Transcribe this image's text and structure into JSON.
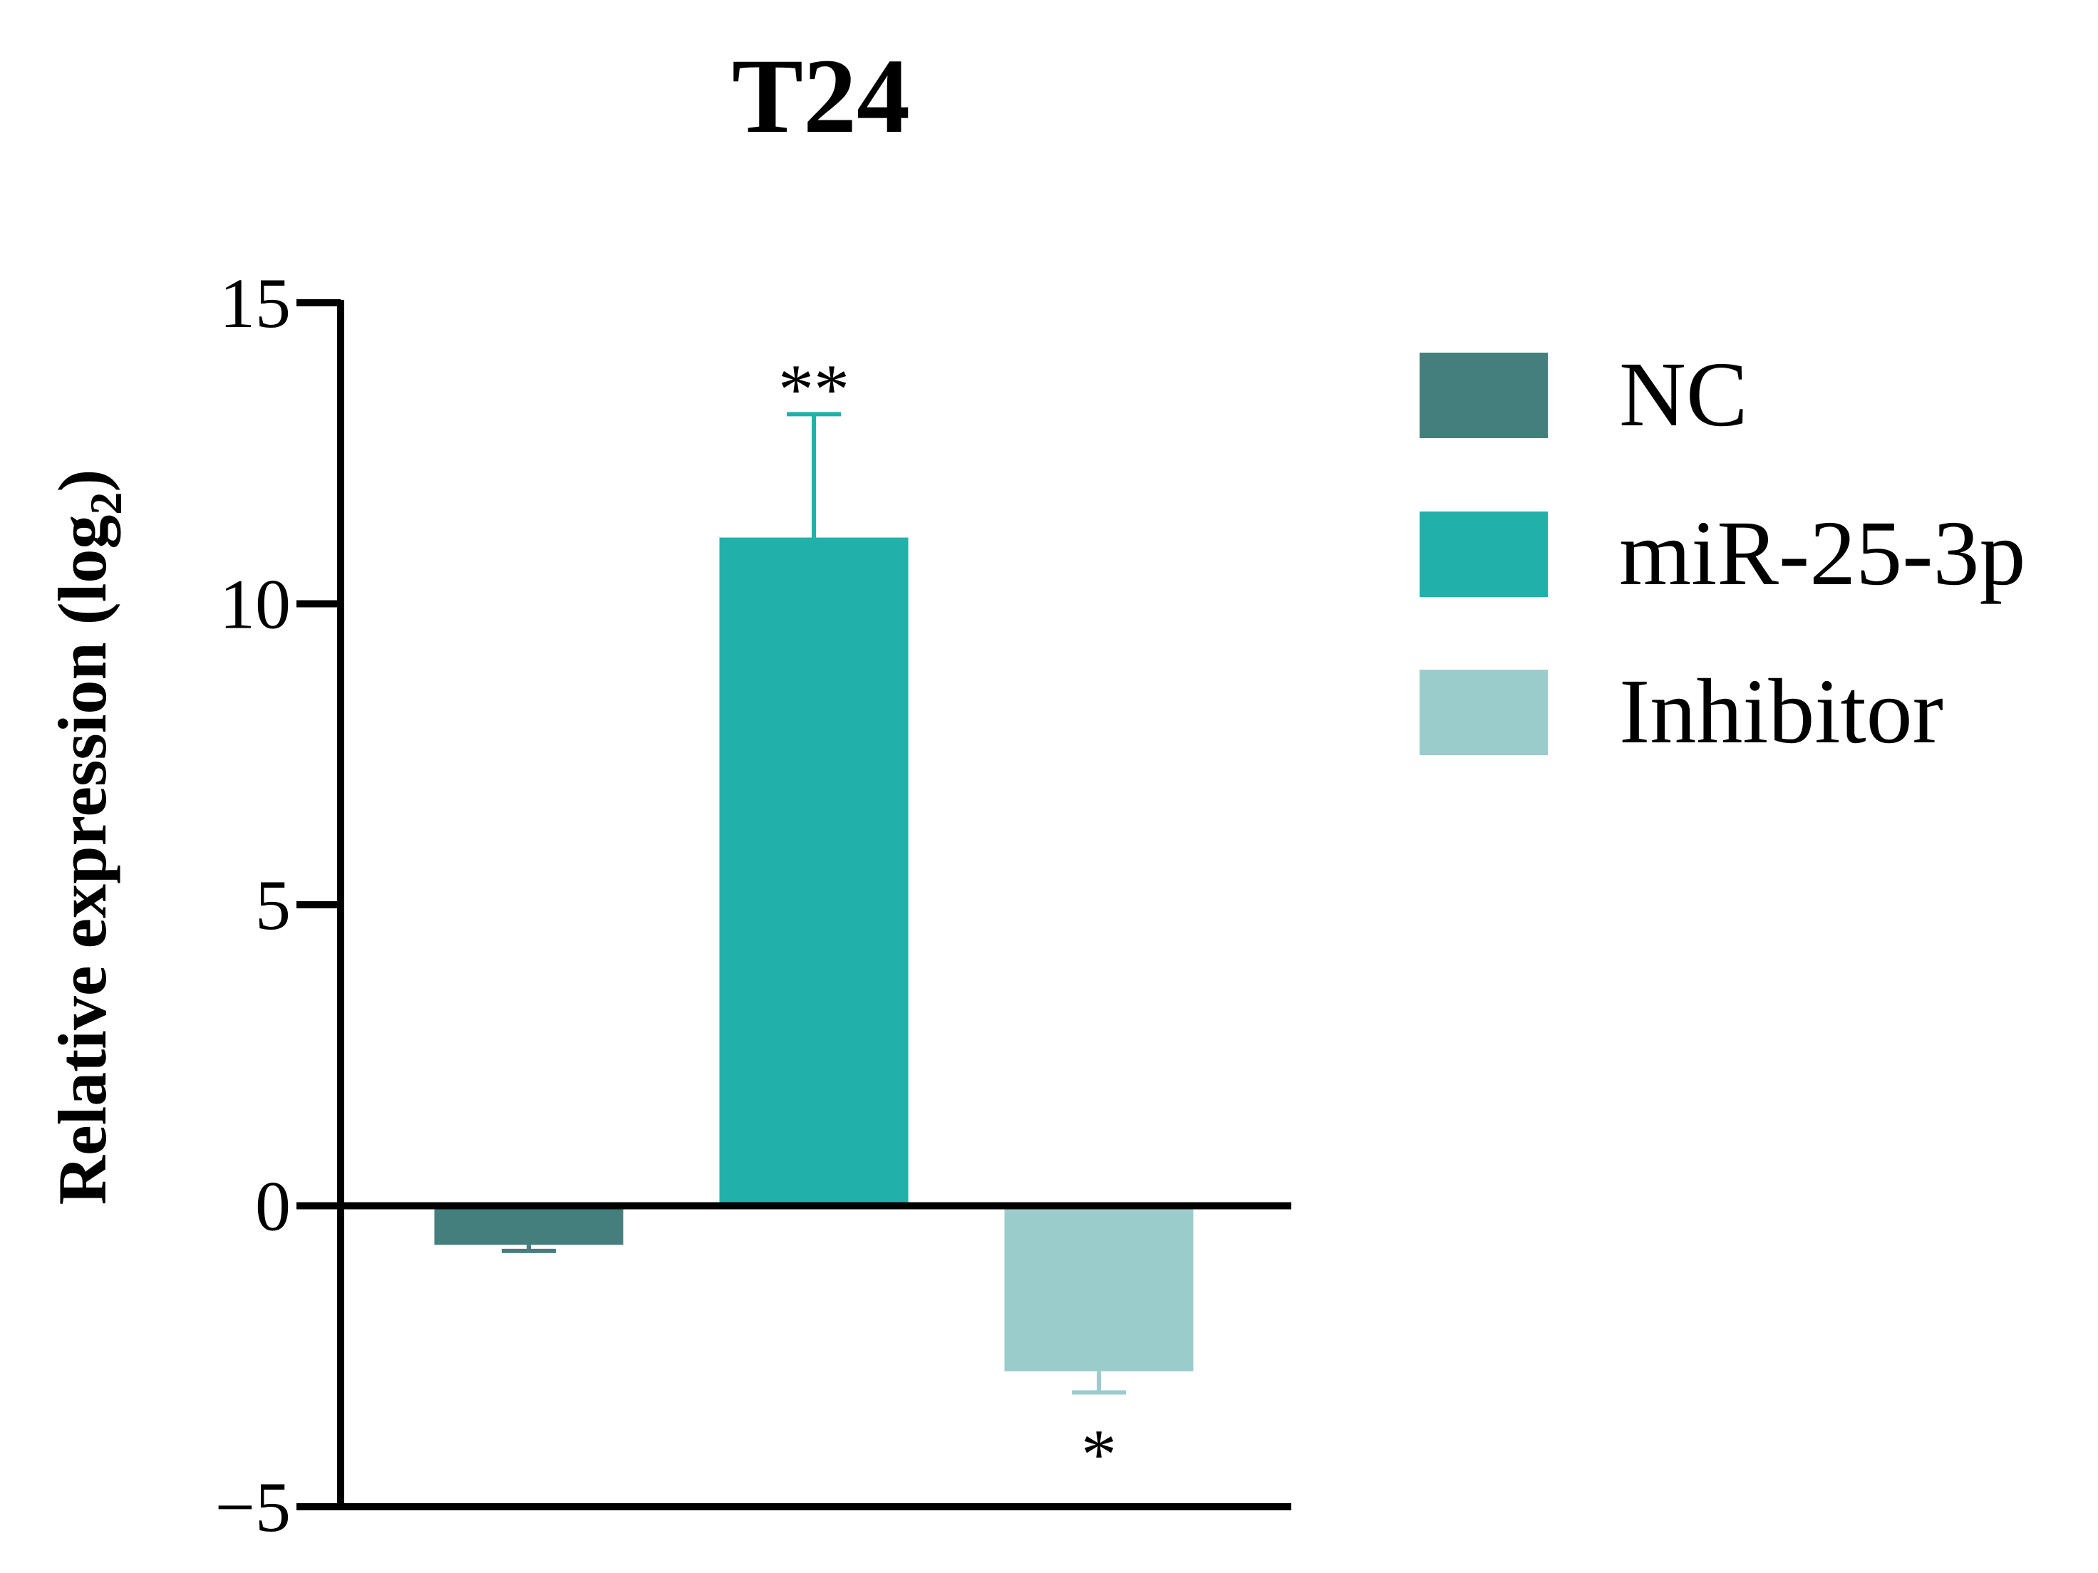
{
  "chart_data": {
    "type": "bar",
    "title": "T24",
    "ylabel": "Relative expression (log",
    "ylabel_subscript": "2",
    "ylabel_close": ")",
    "xlabel": "",
    "ylim": [
      -5,
      15
    ],
    "yticks": [
      15,
      10,
      5,
      0,
      -5
    ],
    "ytick_labels": [
      "15",
      "10",
      "5",
      "0",
      "−5"
    ],
    "categories": [
      "NC",
      "miR-25-3p",
      "Inhibitor"
    ],
    "values": [
      -0.65,
      11.1,
      -2.75
    ],
    "errors": [
      0.1,
      2.05,
      0.35
    ],
    "significance": [
      "",
      "**",
      "*"
    ],
    "colors": [
      "#447f7e",
      "#21b1aa",
      "#9bcccc"
    ],
    "legend": {
      "position": "top-right",
      "entries": [
        "NC",
        "miR-25-3p",
        "Inhibitor"
      ]
    }
  }
}
